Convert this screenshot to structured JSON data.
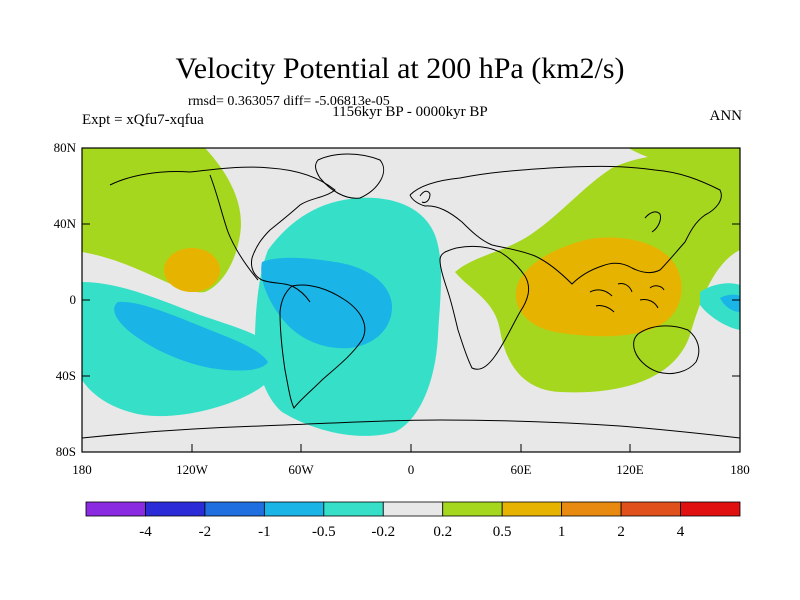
{
  "title": "Velocity Potential at 200 hPa (km2/s)",
  "subtitle": "rmsd= 0.363057 diff= -5.06813e-05",
  "period": "1156kyr BP - 0000kyr BP",
  "expt_label": "Expt = xQfu7-xqfua",
  "season": "ANN",
  "lat_ticks": [
    "80N",
    "40N",
    "0",
    "40S",
    "80S"
  ],
  "lon_ticks": [
    "180",
    "120W",
    "60W",
    "0",
    "60E",
    "120E",
    "180"
  ],
  "colorbar": {
    "colors": [
      "#8a2be2",
      "#2b2bd8",
      "#1f6fe0",
      "#1ab4e6",
      "#36e0c8",
      "#e8e8e8",
      "#a6d71f",
      "#e6b400",
      "#e88a10",
      "#e0501a",
      "#e01010"
    ],
    "labels": [
      "-4",
      "-2",
      "-1",
      "-0.5",
      "-0.2",
      "0.2",
      "0.5",
      "1",
      "2",
      "4"
    ]
  },
  "colors": {
    "neutral": "#e8e8e8",
    "pos_low": "#a6d71f",
    "pos_mid": "#e6b400",
    "neg_low": "#36e0c8",
    "neg_mid": "#1ab4e6"
  }
}
